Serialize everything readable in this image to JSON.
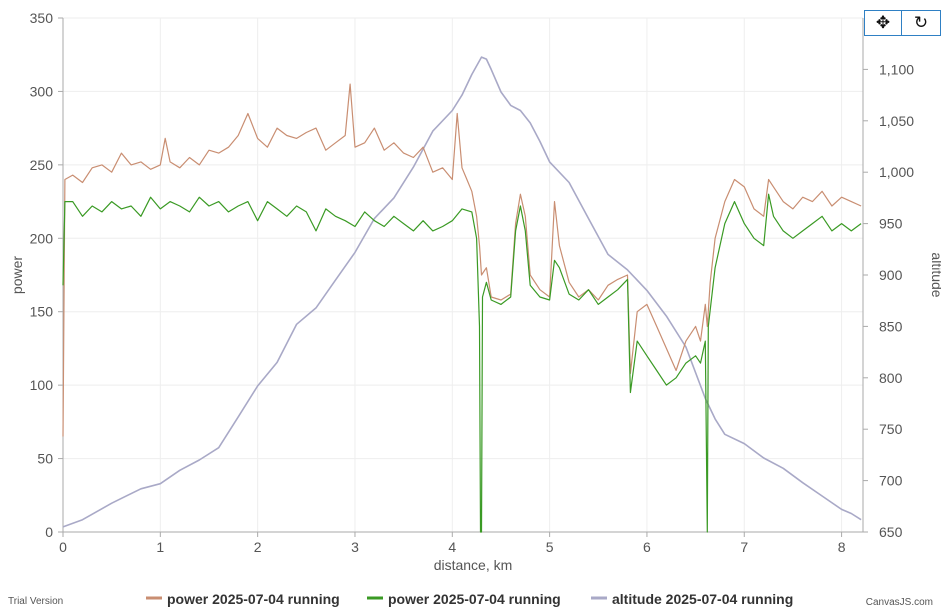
{
  "toolbar": {
    "pan_icon": "four-arrows-move-icon",
    "reset_icon": "rotate-reset-icon"
  },
  "credits": {
    "left": "Trial Version",
    "right": "CanvasJS.com"
  },
  "chart_data": {
    "type": "line",
    "title": "",
    "xlabel": "distance, km",
    "ylabel": "power",
    "y2label": "altitude",
    "xlim": [
      0,
      8.22
    ],
    "ylim": [
      0,
      350
    ],
    "y2lim": [
      650,
      1150
    ],
    "x_ticks": [
      0,
      1,
      2,
      3,
      4,
      5,
      6,
      7,
      8
    ],
    "y_ticks": [
      0,
      50,
      100,
      150,
      200,
      250,
      300,
      350
    ],
    "y2_ticks": [
      "650",
      "700",
      "750",
      "800",
      "850",
      "900",
      "950",
      "1,000",
      "1,050",
      "1,100"
    ],
    "y2_tick_values": [
      650,
      700,
      750,
      800,
      850,
      900,
      950,
      1000,
      1050,
      1100
    ],
    "grid": true,
    "legend_position": "bottom",
    "series": [
      {
        "name": "power 2025-07-04 running",
        "axis": "left",
        "color": "#c98e72",
        "points": [
          [
            0,
            65
          ],
          [
            0.02,
            240
          ],
          [
            0.1,
            243
          ],
          [
            0.2,
            238
          ],
          [
            0.3,
            248
          ],
          [
            0.4,
            250
          ],
          [
            0.5,
            245
          ],
          [
            0.6,
            258
          ],
          [
            0.7,
            250
          ],
          [
            0.8,
            252
          ],
          [
            0.9,
            247
          ],
          [
            1.0,
            250
          ],
          [
            1.05,
            268
          ],
          [
            1.1,
            252
          ],
          [
            1.2,
            248
          ],
          [
            1.3,
            255
          ],
          [
            1.4,
            250
          ],
          [
            1.5,
            260
          ],
          [
            1.6,
            258
          ],
          [
            1.7,
            262
          ],
          [
            1.8,
            270
          ],
          [
            1.9,
            285
          ],
          [
            2.0,
            268
          ],
          [
            2.1,
            262
          ],
          [
            2.2,
            275
          ],
          [
            2.3,
            270
          ],
          [
            2.4,
            268
          ],
          [
            2.5,
            272
          ],
          [
            2.6,
            275
          ],
          [
            2.7,
            260
          ],
          [
            2.8,
            265
          ],
          [
            2.9,
            270
          ],
          [
            2.95,
            305
          ],
          [
            3.0,
            262
          ],
          [
            3.1,
            265
          ],
          [
            3.2,
            275
          ],
          [
            3.3,
            260
          ],
          [
            3.4,
            265
          ],
          [
            3.5,
            258
          ],
          [
            3.6,
            255
          ],
          [
            3.7,
            262
          ],
          [
            3.8,
            245
          ],
          [
            3.9,
            248
          ],
          [
            4.0,
            240
          ],
          [
            4.05,
            285
          ],
          [
            4.1,
            248
          ],
          [
            4.15,
            240
          ],
          [
            4.2,
            232
          ],
          [
            4.25,
            215
          ],
          [
            4.28,
            195
          ],
          [
            4.3,
            175
          ],
          [
            4.35,
            180
          ],
          [
            4.4,
            160
          ],
          [
            4.5,
            158
          ],
          [
            4.6,
            162
          ],
          [
            4.65,
            210
          ],
          [
            4.7,
            230
          ],
          [
            4.75,
            215
          ],
          [
            4.8,
            175
          ],
          [
            4.9,
            165
          ],
          [
            5.0,
            160
          ],
          [
            5.05,
            225
          ],
          [
            5.1,
            195
          ],
          [
            5.2,
            170
          ],
          [
            5.3,
            160
          ],
          [
            5.4,
            165
          ],
          [
            5.5,
            158
          ],
          [
            5.6,
            168
          ],
          [
            5.7,
            172
          ],
          [
            5.8,
            175
          ],
          [
            5.83,
            108
          ],
          [
            5.9,
            150
          ],
          [
            6.0,
            155
          ],
          [
            6.1,
            140
          ],
          [
            6.2,
            125
          ],
          [
            6.3,
            110
          ],
          [
            6.4,
            130
          ],
          [
            6.5,
            140
          ],
          [
            6.55,
            130
          ],
          [
            6.6,
            155
          ],
          [
            6.62,
            140
          ],
          [
            6.65,
            170
          ],
          [
            6.7,
            200
          ],
          [
            6.8,
            225
          ],
          [
            6.9,
            240
          ],
          [
            7.0,
            235
          ],
          [
            7.1,
            220
          ],
          [
            7.2,
            215
          ],
          [
            7.25,
            240
          ],
          [
            7.3,
            235
          ],
          [
            7.4,
            225
          ],
          [
            7.5,
            220
          ],
          [
            7.6,
            228
          ],
          [
            7.7,
            225
          ],
          [
            7.8,
            232
          ],
          [
            7.9,
            222
          ],
          [
            8.0,
            228
          ],
          [
            8.1,
            225
          ],
          [
            8.2,
            222
          ]
        ]
      },
      {
        "name": "power 2025-07-04 running",
        "axis": "left",
        "color": "#3a9a24",
        "points": [
          [
            0,
            168
          ],
          [
            0.02,
            225
          ],
          [
            0.1,
            225
          ],
          [
            0.2,
            215
          ],
          [
            0.3,
            222
          ],
          [
            0.4,
            218
          ],
          [
            0.5,
            225
          ],
          [
            0.6,
            220
          ],
          [
            0.7,
            222
          ],
          [
            0.8,
            215
          ],
          [
            0.9,
            228
          ],
          [
            1.0,
            220
          ],
          [
            1.1,
            225
          ],
          [
            1.2,
            222
          ],
          [
            1.3,
            218
          ],
          [
            1.4,
            228
          ],
          [
            1.5,
            222
          ],
          [
            1.6,
            225
          ],
          [
            1.7,
            218
          ],
          [
            1.8,
            222
          ],
          [
            1.9,
            225
          ],
          [
            2.0,
            212
          ],
          [
            2.1,
            225
          ],
          [
            2.2,
            220
          ],
          [
            2.3,
            215
          ],
          [
            2.4,
            222
          ],
          [
            2.5,
            218
          ],
          [
            2.6,
            205
          ],
          [
            2.7,
            220
          ],
          [
            2.8,
            215
          ],
          [
            2.9,
            212
          ],
          [
            3.0,
            208
          ],
          [
            3.1,
            218
          ],
          [
            3.2,
            212
          ],
          [
            3.3,
            208
          ],
          [
            3.4,
            215
          ],
          [
            3.5,
            210
          ],
          [
            3.6,
            205
          ],
          [
            3.7,
            212
          ],
          [
            3.8,
            205
          ],
          [
            3.9,
            208
          ],
          [
            4.0,
            212
          ],
          [
            4.1,
            220
          ],
          [
            4.2,
            218
          ],
          [
            4.25,
            200
          ],
          [
            4.28,
            140
          ],
          [
            4.29,
            0
          ],
          [
            4.3,
            0
          ],
          [
            4.31,
            160
          ],
          [
            4.35,
            170
          ],
          [
            4.4,
            158
          ],
          [
            4.5,
            155
          ],
          [
            4.6,
            160
          ],
          [
            4.65,
            205
          ],
          [
            4.7,
            222
          ],
          [
            4.75,
            205
          ],
          [
            4.8,
            168
          ],
          [
            4.9,
            160
          ],
          [
            5.0,
            158
          ],
          [
            5.05,
            185
          ],
          [
            5.1,
            180
          ],
          [
            5.2,
            162
          ],
          [
            5.3,
            158
          ],
          [
            5.4,
            165
          ],
          [
            5.5,
            155
          ],
          [
            5.6,
            160
          ],
          [
            5.7,
            165
          ],
          [
            5.8,
            172
          ],
          [
            5.83,
            95
          ],
          [
            5.9,
            130
          ],
          [
            6.0,
            120
          ],
          [
            6.1,
            110
          ],
          [
            6.2,
            100
          ],
          [
            6.3,
            105
          ],
          [
            6.4,
            115
          ],
          [
            6.5,
            120
          ],
          [
            6.55,
            115
          ],
          [
            6.6,
            130
          ],
          [
            6.62,
            0
          ],
          [
            6.63,
            140
          ],
          [
            6.7,
            180
          ],
          [
            6.8,
            210
          ],
          [
            6.9,
            225
          ],
          [
            7.0,
            210
          ],
          [
            7.1,
            200
          ],
          [
            7.2,
            195
          ],
          [
            7.25,
            230
          ],
          [
            7.3,
            215
          ],
          [
            7.4,
            205
          ],
          [
            7.5,
            200
          ],
          [
            7.6,
            205
          ],
          [
            7.7,
            210
          ],
          [
            7.8,
            215
          ],
          [
            7.9,
            205
          ],
          [
            8.0,
            210
          ],
          [
            8.1,
            205
          ],
          [
            8.2,
            210
          ]
        ]
      },
      {
        "name": "altitude 2025-07-04 running",
        "axis": "right",
        "color": "#a9a9c7",
        "points": [
          [
            0,
            655
          ],
          [
            0.2,
            662
          ],
          [
            0.5,
            678
          ],
          [
            0.8,
            692
          ],
          [
            1.0,
            697
          ],
          [
            1.2,
            710
          ],
          [
            1.4,
            720
          ],
          [
            1.6,
            732
          ],
          [
            1.8,
            762
          ],
          [
            2.0,
            792
          ],
          [
            2.2,
            815
          ],
          [
            2.4,
            852
          ],
          [
            2.6,
            868
          ],
          [
            2.8,
            895
          ],
          [
            3.0,
            922
          ],
          [
            3.2,
            955
          ],
          [
            3.4,
            975
          ],
          [
            3.6,
            1005
          ],
          [
            3.8,
            1040
          ],
          [
            4.0,
            1060
          ],
          [
            4.1,
            1075
          ],
          [
            4.2,
            1095
          ],
          [
            4.3,
            1112
          ],
          [
            4.35,
            1110
          ],
          [
            4.4,
            1100
          ],
          [
            4.5,
            1078
          ],
          [
            4.6,
            1065
          ],
          [
            4.7,
            1060
          ],
          [
            4.8,
            1048
          ],
          [
            4.9,
            1030
          ],
          [
            5.0,
            1010
          ],
          [
            5.2,
            990
          ],
          [
            5.4,
            955
          ],
          [
            5.6,
            920
          ],
          [
            5.8,
            905
          ],
          [
            6.0,
            885
          ],
          [
            6.2,
            860
          ],
          [
            6.4,
            830
          ],
          [
            6.6,
            780
          ],
          [
            6.7,
            760
          ],
          [
            6.8,
            745
          ],
          [
            7.0,
            736
          ],
          [
            7.2,
            722
          ],
          [
            7.4,
            712
          ],
          [
            7.6,
            698
          ],
          [
            7.8,
            685
          ],
          [
            8.0,
            672
          ],
          [
            8.1,
            668
          ],
          [
            8.2,
            662
          ]
        ]
      }
    ]
  }
}
